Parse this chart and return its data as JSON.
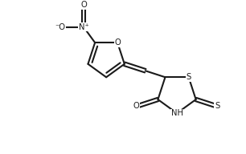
{
  "bg_color": "#ffffff",
  "line_color": "#1a1a1a",
  "line_width": 1.5,
  "font_size": 7.2,
  "figsize": [
    3.06,
    1.92
  ],
  "dpi": 100,
  "xlim": [
    -2.6,
    2.0
  ],
  "ylim": [
    -2.0,
    1.6
  ]
}
